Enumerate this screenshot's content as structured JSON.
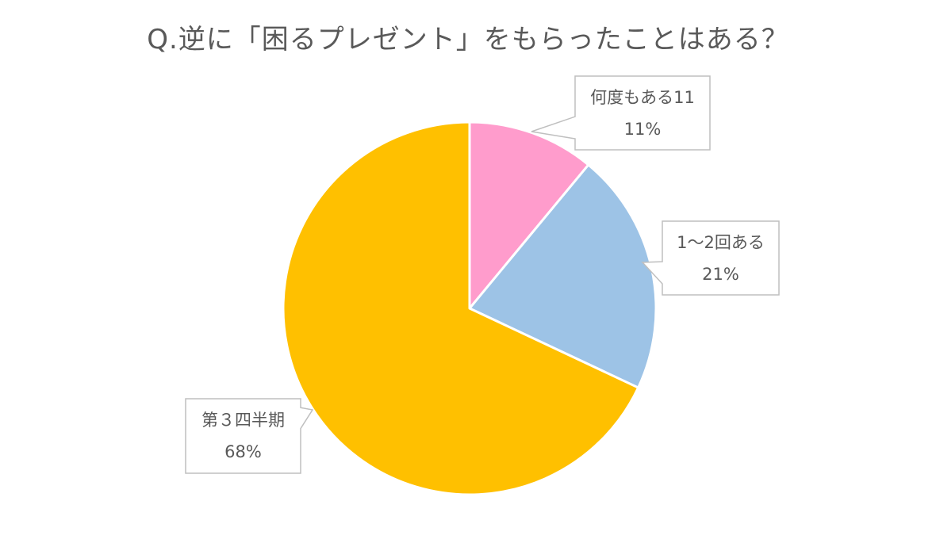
{
  "chart_data": {
    "type": "pie",
    "title": "Q.逆に「困るプレゼント」をもらったことはある？",
    "slices": [
      {
        "label": "何度もある11",
        "percent_label": "11%",
        "value": 11,
        "color": "#FF9CCC"
      },
      {
        "label": "1〜2回ある",
        "percent_label": "21%",
        "value": 21,
        "color": "#9DC3E6"
      },
      {
        "label": "第３四半期",
        "percent_label": "68%",
        "value": 68,
        "color": "#FFC000"
      }
    ],
    "start_angle": "12 o'clock",
    "direction": "clockwise",
    "legend": "none",
    "data_labels": "callouts"
  }
}
